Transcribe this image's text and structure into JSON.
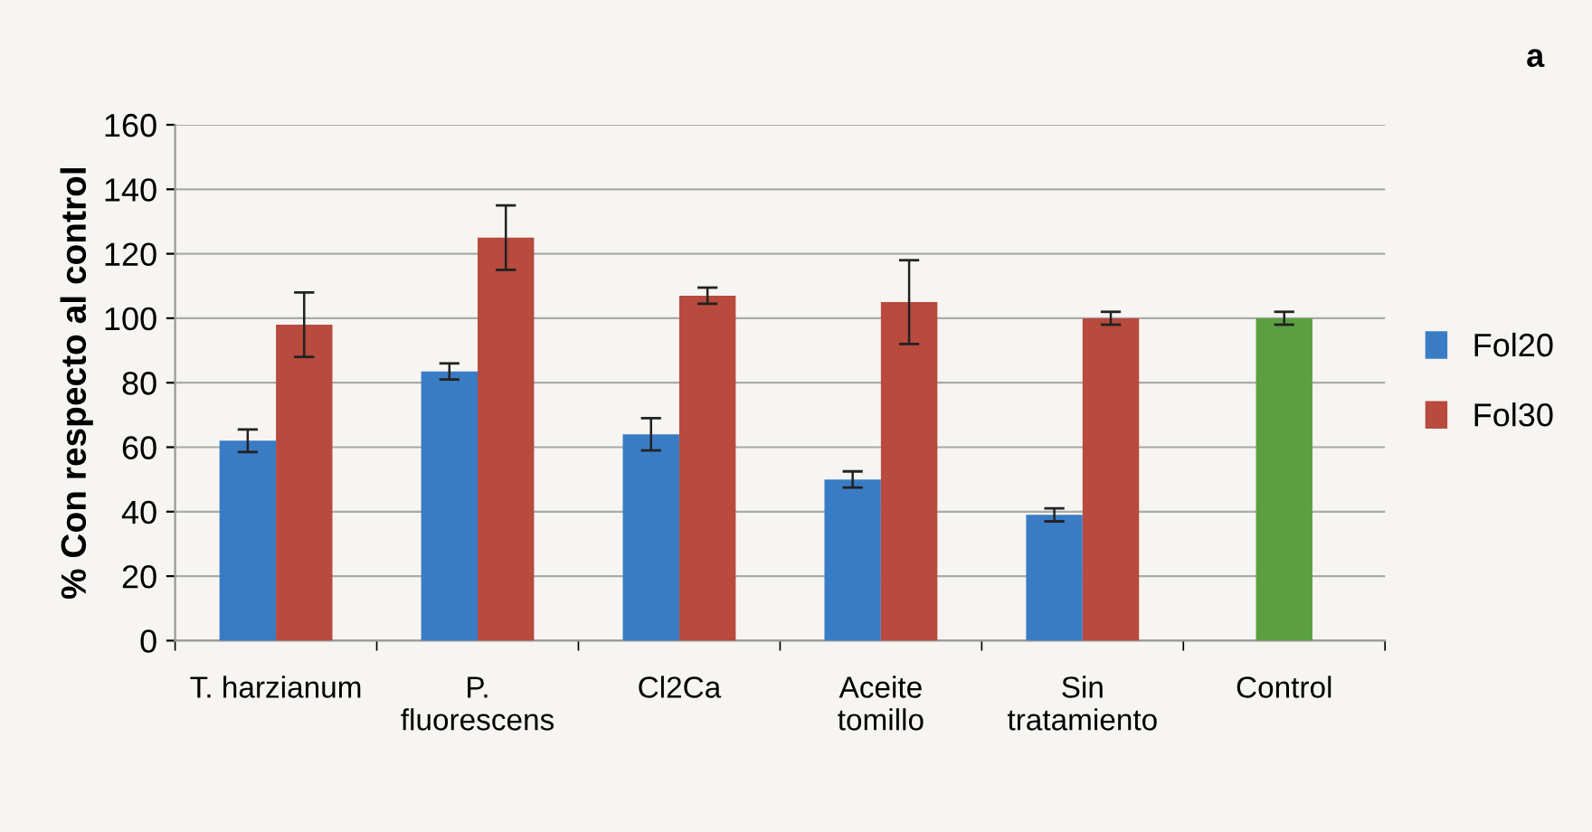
{
  "chart_data": {
    "type": "bar",
    "title": "a",
    "ylabel": "% Con respecto al control",
    "categories": [
      "T. harzianum",
      "P.\nfluorescens",
      "Cl2Ca",
      "Aceite\ntomillo",
      "Sin\ntratamiento",
      "Control"
    ],
    "series": [
      {
        "name": "Fol20",
        "color": "#3a7cc4",
        "values": [
          62,
          83.5,
          64,
          50,
          39,
          null
        ],
        "errors": [
          3.5,
          2.5,
          5,
          2.5,
          2,
          null
        ]
      },
      {
        "name": "Fol30",
        "color": "#b84a3e",
        "colors": [
          "#b84a3e",
          "#b84a3e",
          "#b84a3e",
          "#b84a3e",
          "#b84a3e",
          "#5aa040"
        ],
        "values": [
          98,
          125,
          107,
          105,
          100,
          100
        ],
        "errors": [
          10,
          10,
          2.5,
          13,
          2,
          2
        ]
      }
    ],
    "ylim": [
      0,
      160
    ],
    "yticks": [
      0,
      20,
      40,
      60,
      80,
      100,
      120,
      140,
      160
    ],
    "grid": "y",
    "legend": "right"
  }
}
